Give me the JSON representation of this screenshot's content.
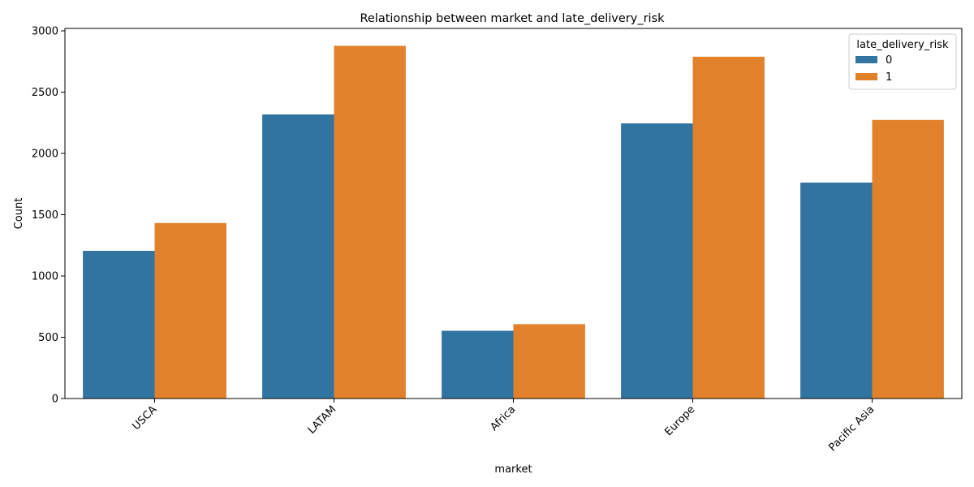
{
  "chart_data": {
    "type": "bar",
    "title": "Relationship between market and late_delivery_risk",
    "xlabel": "market",
    "ylabel": "Count",
    "categories": [
      "USCA",
      "LATAM",
      "Africa",
      "Europe",
      "Pacific Asia"
    ],
    "series": [
      {
        "name": "0",
        "color": "#3274a1",
        "values": [
          1205,
          2318,
          553,
          2245,
          1762
        ]
      },
      {
        "name": "1",
        "color": "#e1812c",
        "values": [
          1432,
          2878,
          607,
          2789,
          2273
        ]
      }
    ],
    "ylim": [
      0,
      3020
    ],
    "yticks": [
      0,
      500,
      1000,
      1500,
      2000,
      2500,
      3000
    ],
    "legend": {
      "title": "late_delivery_risk",
      "placement": "top-right"
    },
    "grid": false
  }
}
